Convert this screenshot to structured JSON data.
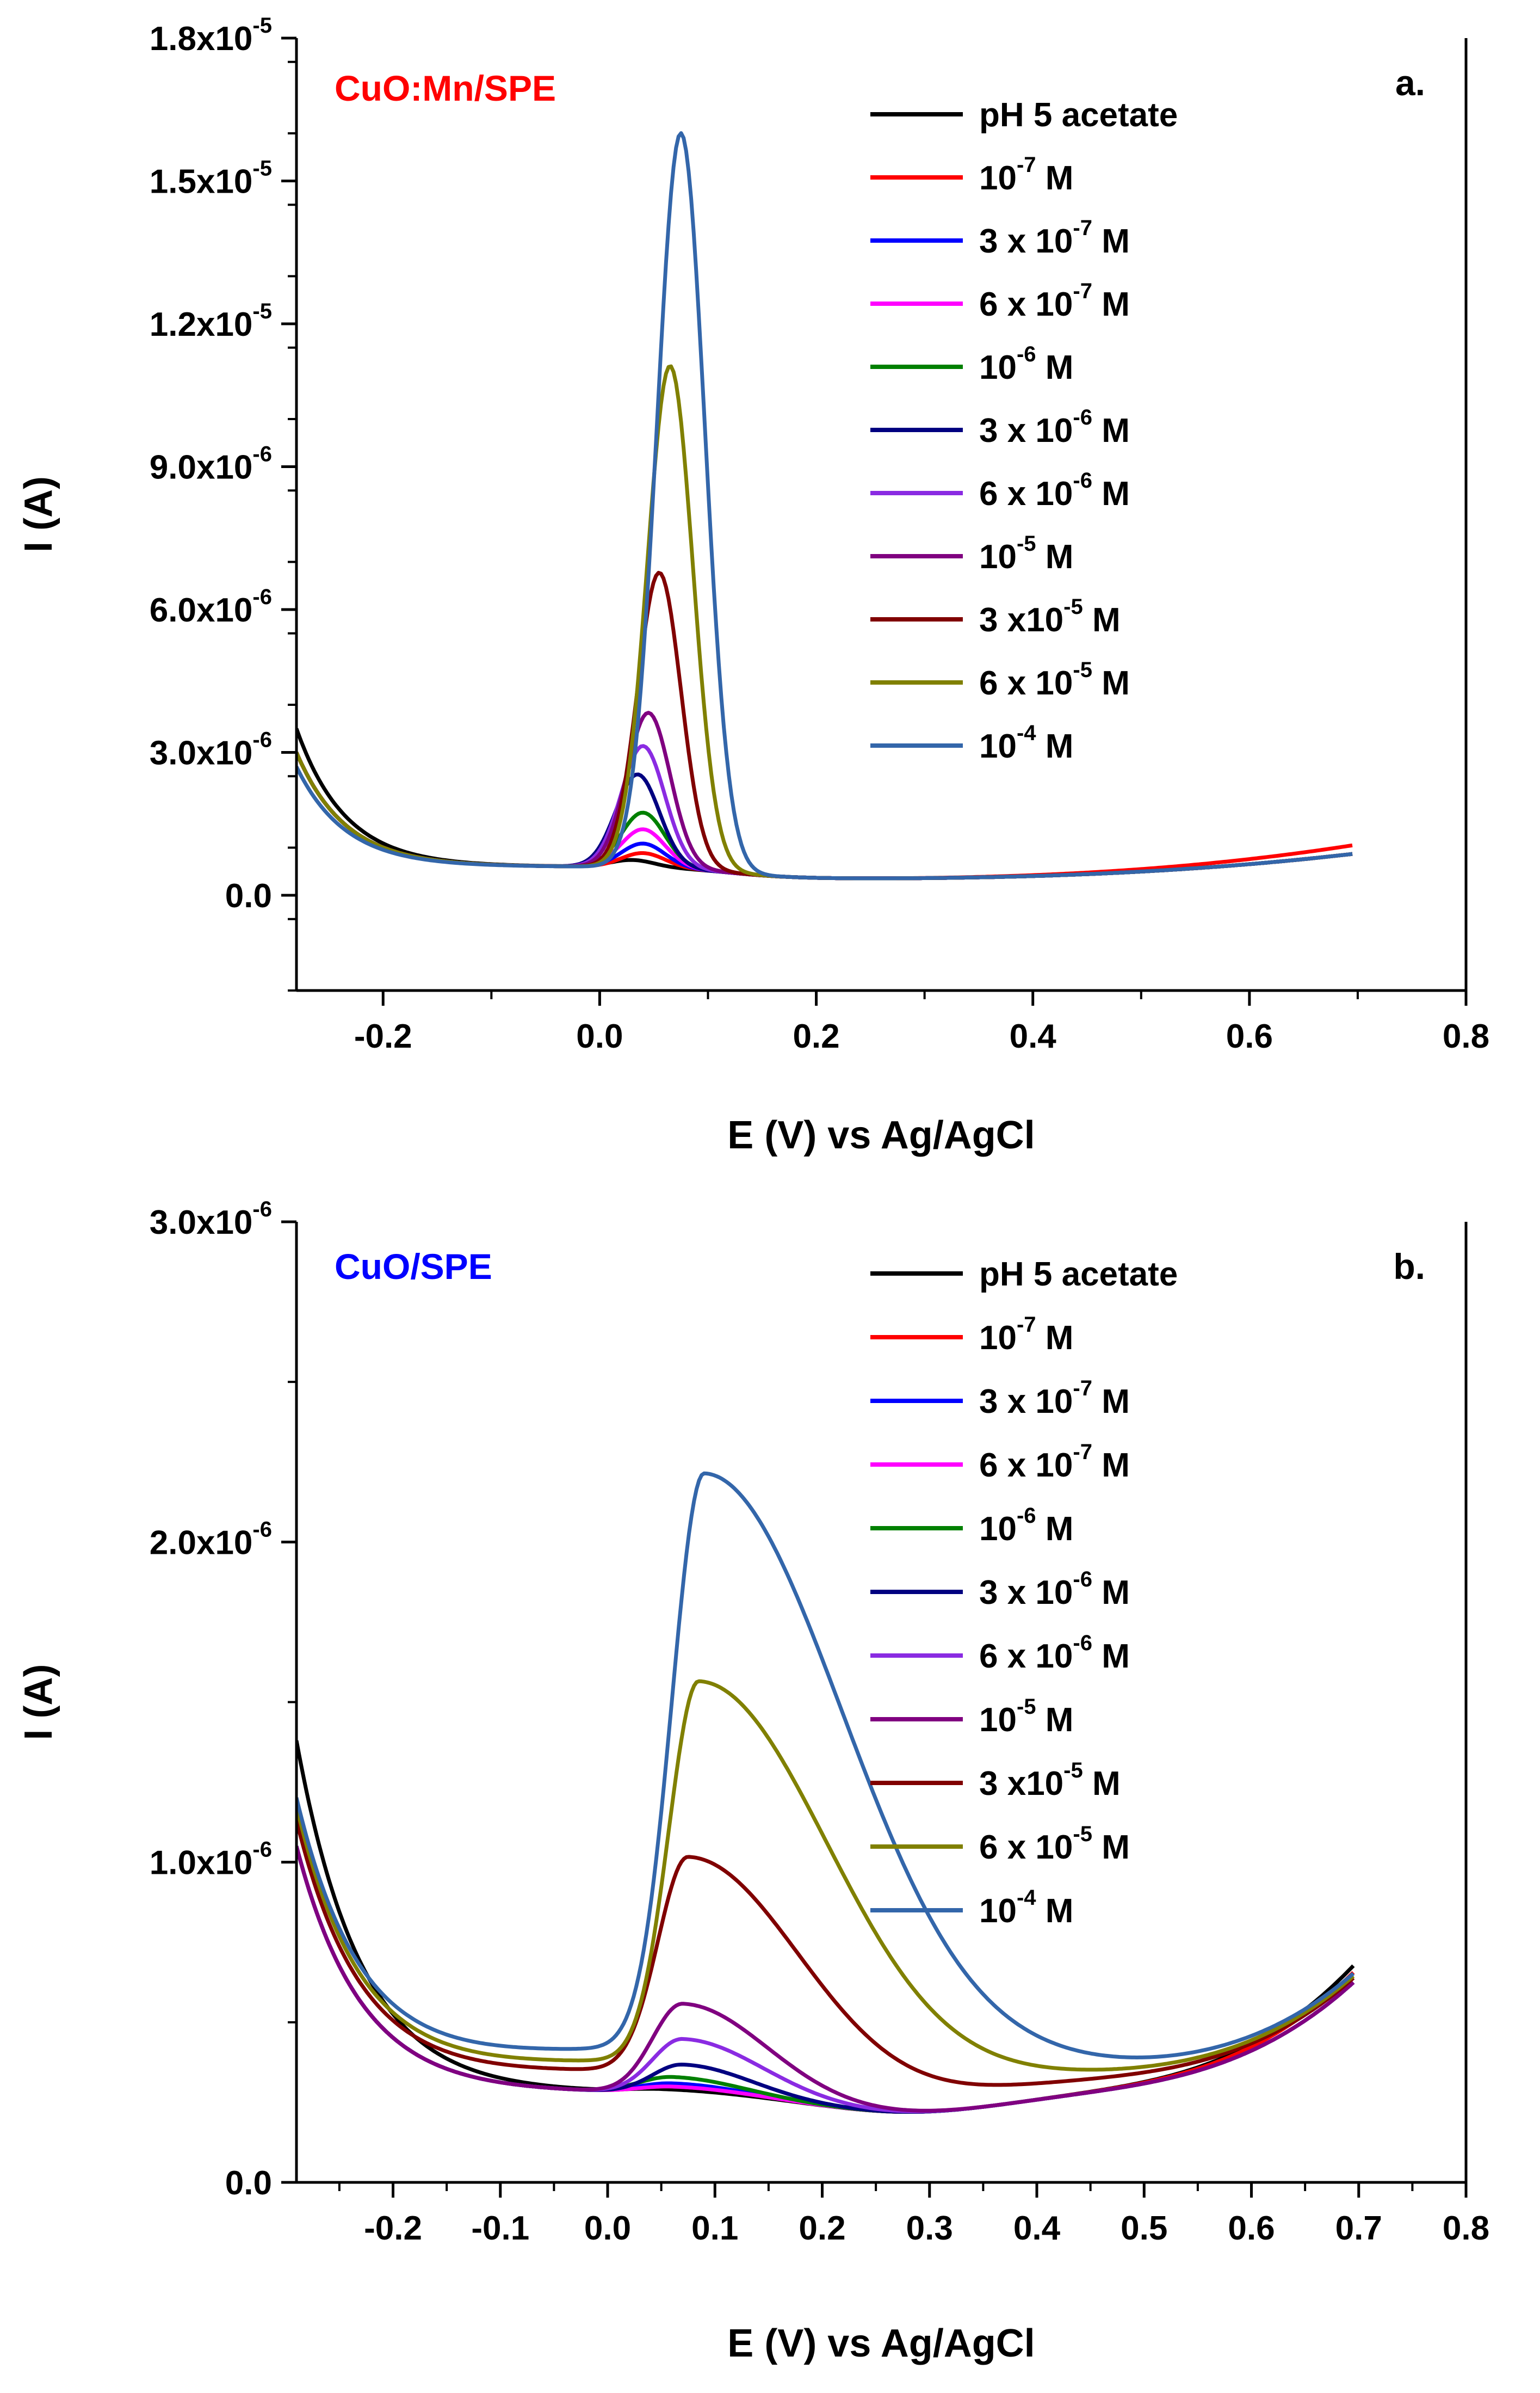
{
  "chart_data": [
    {
      "panel": "a.",
      "type": "line",
      "title": "CuO:Mn/SPE",
      "title_color": "#ff0000",
      "xlabel": "E (V) vs Ag/AgCl",
      "ylabel": "I (A)",
      "xlim": [
        -0.28,
        0.8
      ],
      "ylim": [
        -2e-06,
        1.8e-05
      ],
      "x_ticks": [
        -0.2,
        0.0,
        0.2,
        0.4,
        0.6,
        0.8
      ],
      "x_tick_labels": [
        "-0.2",
        "0.0",
        "0.2",
        "0.4",
        "0.6",
        "0.8"
      ],
      "y_ticks": [
        0,
        3e-06,
        6e-06,
        9e-06,
        1.2e-05,
        1.5e-05,
        1.8e-05
      ],
      "y_tick_labels": [
        {
          "mant": "0.0",
          "exp": ""
        },
        {
          "mant": "3.0x10",
          "exp": "-6"
        },
        {
          "mant": "6.0x10",
          "exp": "-6"
        },
        {
          "mant": "9.0x10",
          "exp": "-6"
        },
        {
          "mant": "1.2x10",
          "exp": "-5"
        },
        {
          "mant": "1.5x10",
          "exp": "-5"
        },
        {
          "mant": "1.8x10",
          "exp": "-5"
        }
      ],
      "legend_position": "top-right",
      "baseline": {
        "start": 3e-06,
        "decay": 0.045,
        "valley": 6e-07,
        "rise_coef": 3e-06,
        "rise_power": 2.5
      },
      "series": [
        {
          "name": "pH 5 acetate",
          "label": {
            "pre": "pH 5 acetate",
            "sup": "",
            "post": ""
          },
          "color": "#000000",
          "peak": 1.5e-07,
          "center": 0.03,
          "sigma": 0.02,
          "start": 3.5e-06
        },
        {
          "name": "10-7 M",
          "label": {
            "pre": "10",
            "sup": "-7",
            "post": " M"
          },
          "color": "#ff0000",
          "peak": 3e-07,
          "center": 0.04,
          "sigma": 0.02,
          "start": 3e-06,
          "end": 1e-06
        },
        {
          "name": "3 x 10-7 M",
          "label": {
            "pre": "3 x 10",
            "sup": "-7",
            "post": " M"
          },
          "color": "#0000ff",
          "peak": 5e-07,
          "center": 0.04,
          "sigma": 0.02
        },
        {
          "name": "6 x 10-7 M",
          "label": {
            "pre": "6 x 10",
            "sup": "-7",
            "post": " M"
          },
          "color": "#ff00ff",
          "peak": 8e-07,
          "center": 0.04,
          "sigma": 0.02
        },
        {
          "name": "10-6 M",
          "label": {
            "pre": "10",
            "sup": "-6",
            "post": " M"
          },
          "color": "#008000",
          "peak": 1.15e-06,
          "center": 0.04,
          "sigma": 0.02
        },
        {
          "name": "3 x 10-6 M",
          "label": {
            "pre": "3 x 10",
            "sup": "-6",
            "post": " M"
          },
          "color": "#000080",
          "peak": 1.95e-06,
          "center": 0.035,
          "sigma": 0.02
        },
        {
          "name": "6 x 10-6 M",
          "label": {
            "pre": "6 x 10",
            "sup": "-6",
            "post": " M"
          },
          "color": "#8a2be2",
          "peak": 2.55e-06,
          "center": 0.04,
          "sigma": 0.02
        },
        {
          "name": "10-5 M",
          "label": {
            "pre": "10",
            "sup": "-5",
            "post": " M"
          },
          "color": "#800080",
          "peak": 3.25e-06,
          "center": 0.045,
          "sigma": 0.02
        },
        {
          "name": "3 x10-5 M",
          "label": {
            "pre": "3 x10",
            "sup": "-5",
            "post": " M"
          },
          "color": "#800000",
          "peak": 6.2e-06,
          "center": 0.055,
          "sigma": 0.02
        },
        {
          "name": "6 x 10-5 M",
          "label": {
            "pre": "6 x 10",
            "sup": "-5",
            "post": " M"
          },
          "color": "#808000",
          "peak": 1.055e-05,
          "center": 0.065,
          "sigma": 0.021
        },
        {
          "name": "10-4 M",
          "label": {
            "pre": "10",
            "sup": "-4",
            "post": " M"
          },
          "color": "#3366aa",
          "peak": 1.545e-05,
          "center": 0.075,
          "sigma": 0.022,
          "start": 2.7e-06
        }
      ]
    },
    {
      "panel": "b.",
      "type": "line",
      "title": "CuO/SPE",
      "title_color": "#0000ff",
      "xlabel": "E (V) vs Ag/AgCl",
      "ylabel": "I (A)",
      "xlim": [
        -0.29,
        0.8
      ],
      "ylim": [
        0,
        3e-06
      ],
      "x_ticks": [
        -0.2,
        -0.1,
        0.0,
        0.1,
        0.2,
        0.3,
        0.4,
        0.5,
        0.6,
        0.7,
        0.8
      ],
      "x_tick_labels": [
        "-0.2",
        "-0.1",
        "0.0",
        "0.1",
        "0.2",
        "0.3",
        "0.4",
        "0.5",
        "0.6",
        "0.7",
        "0.8"
      ],
      "y_ticks": [
        0,
        1e-06,
        2e-06,
        3e-06
      ],
      "y_tick_labels": [
        {
          "mant": "0.0",
          "exp": ""
        },
        {
          "mant": "1.0x10",
          "exp": "-6"
        },
        {
          "mant": "2.0x10",
          "exp": "-6"
        },
        {
          "mant": "3.0x10",
          "exp": "-6"
        }
      ],
      "legend_position": "top-right",
      "baseline": {
        "start": 1.05e-06,
        "decay": 0.06,
        "valley": 2.8e-07,
        "min_x": 0.28,
        "min_depth": 6e-08,
        "rise_coef": 3.6e-07,
        "rise_power": 3.5
      },
      "series": [
        {
          "name": "pH 5 acetate",
          "label": {
            "pre": "pH 5 acetate",
            "sup": "",
            "post": ""
          },
          "color": "#000000",
          "peak": 1e-08,
          "center": 0.05,
          "sigma": 0.03,
          "tail": 0.06,
          "start": 1.38e-06,
          "end": 7.6e-07
        },
        {
          "name": "10-7 M",
          "label": {
            "pre": "10",
            "sup": "-7",
            "post": " M"
          },
          "color": "#ff0000",
          "peak": 2e-08,
          "center": 0.06,
          "sigma": 0.03,
          "tail": 0.06,
          "end": 7.2e-07
        },
        {
          "name": "3 x 10-7 M",
          "label": {
            "pre": "3 x 10",
            "sup": "-7",
            "post": " M"
          },
          "color": "#0000ff",
          "peak": 3e-08,
          "center": 0.06,
          "sigma": 0.03,
          "tail": 0.06
        },
        {
          "name": "6 x 10-7 M",
          "label": {
            "pre": "6 x 10",
            "sup": "-7",
            "post": " M"
          },
          "color": "#ff00ff",
          "peak": 2e-08,
          "center": 0.06,
          "sigma": 0.03,
          "tail": 0.06
        },
        {
          "name": "10-6 M",
          "label": {
            "pre": "10",
            "sup": "-6",
            "post": " M"
          },
          "color": "#008000",
          "peak": 5e-08,
          "center": 0.06,
          "sigma": 0.03,
          "tail": 0.06
        },
        {
          "name": "3 x 10-6 M",
          "label": {
            "pre": "3 x 10",
            "sup": "-6",
            "post": " M"
          },
          "color": "#000080",
          "peak": 9e-08,
          "center": 0.07,
          "sigma": 0.028,
          "tail": 0.06
        },
        {
          "name": "6 x 10-6 M",
          "label": {
            "pre": "6 x 10",
            "sup": "-6",
            "post": " M"
          },
          "color": "#8a2be2",
          "peak": 1.7e-07,
          "center": 0.07,
          "sigma": 0.028,
          "tail": 0.07
        },
        {
          "name": "10-5 M",
          "label": {
            "pre": "10",
            "sup": "-5",
            "post": " M"
          },
          "color": "#800080",
          "peak": 2.8e-07,
          "center": 0.07,
          "sigma": 0.028,
          "tail": 0.075
        },
        {
          "name": "3 x10-5 M",
          "label": {
            "pre": "3 x10",
            "sup": "-5",
            "post": " M"
          },
          "color": "#800000",
          "peak": 6.7e-07,
          "center": 0.075,
          "sigma": 0.028,
          "tail": 0.1,
          "lift": 7e-08,
          "start": 1.1e-06
        },
        {
          "name": "6 x 10-5 M",
          "label": {
            "pre": "6 x 10",
            "sup": "-5",
            "post": " M"
          },
          "color": "#808000",
          "peak": 1.19e-06,
          "center": 0.085,
          "sigma": 0.028,
          "tail": 0.12,
          "lift": 1e-07,
          "start": 1.13e-06
        },
        {
          "name": "10-4 M",
          "label": {
            "pre": "10",
            "sup": "-4",
            "post": " M"
          },
          "color": "#3366aa",
          "peak": 1.8e-06,
          "center": 0.09,
          "sigma": 0.03,
          "tail": 0.13,
          "lift": 1.4e-07,
          "start": 1.14e-06
        }
      ]
    }
  ]
}
